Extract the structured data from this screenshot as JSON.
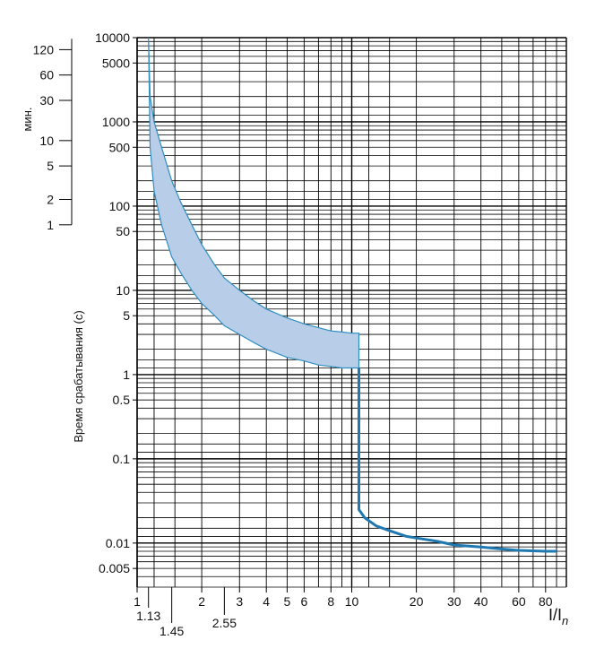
{
  "chart_data": {
    "type": "line",
    "x_scale": "log",
    "y_scale": "log",
    "xlim": [
      1,
      100
    ],
    "ylim": [
      0.003,
      10000
    ],
    "grid": true,
    "xlabel_main": "I/I",
    "xlabel_sub": "n",
    "ylabel": "Время срабатывания (с)",
    "minutes_label": "мин.",
    "x_ticks": [
      {
        "value": 1,
        "label": "1"
      },
      {
        "value": 2,
        "label": "2"
      },
      {
        "value": 3,
        "label": "3"
      },
      {
        "value": 4,
        "label": "4"
      },
      {
        "value": 5,
        "label": "5"
      },
      {
        "value": 6,
        "label": "6"
      },
      {
        "value": 8,
        "label": "8"
      },
      {
        "value": 10,
        "label": "10"
      },
      {
        "value": 20,
        "label": "20"
      },
      {
        "value": 30,
        "label": "30"
      },
      {
        "value": 40,
        "label": "40"
      },
      {
        "value": 60,
        "label": "60"
      },
      {
        "value": 80,
        "label": "80"
      }
    ],
    "x_special_ticks": [
      {
        "value": 1.13,
        "label": "1.13"
      },
      {
        "value": 1.45,
        "label": "1.45"
      },
      {
        "value": 2.55,
        "label": "2.55"
      }
    ],
    "y_ticks": [
      {
        "value": 10000,
        "label": "10000"
      },
      {
        "value": 5000,
        "label": "5000"
      },
      {
        "value": 1000,
        "label": "1000"
      },
      {
        "value": 500,
        "label": "500"
      },
      {
        "value": 100,
        "label": "100"
      },
      {
        "value": 50,
        "label": "50"
      },
      {
        "value": 10,
        "label": "10"
      },
      {
        "value": 5,
        "label": "5"
      },
      {
        "value": 1,
        "label": "1"
      },
      {
        "value": 0.5,
        "label": "0.5"
      },
      {
        "value": 0.1,
        "label": "0.1"
      },
      {
        "value": 0.01,
        "label": "0.01"
      },
      {
        "value": 0.005,
        "label": "0.005"
      }
    ],
    "minute_ticks": [
      {
        "value": 120,
        "label": "120"
      },
      {
        "value": 60,
        "label": "60"
      },
      {
        "value": 30,
        "label": "30"
      },
      {
        "value": 10,
        "label": "10"
      },
      {
        "value": 5,
        "label": "5"
      },
      {
        "value": 2,
        "label": "2"
      },
      {
        "value": 1,
        "label": "1"
      }
    ],
    "band": {
      "upper": [
        [
          1.13,
          10000
        ],
        [
          1.15,
          2000
        ],
        [
          1.2,
          1000
        ],
        [
          1.3,
          500
        ],
        [
          1.45,
          200
        ],
        [
          1.6,
          110
        ],
        [
          1.8,
          60
        ],
        [
          2,
          35
        ],
        [
          2.3,
          20
        ],
        [
          2.55,
          14
        ],
        [
          3,
          10
        ],
        [
          3.5,
          7.5
        ],
        [
          4,
          6
        ],
        [
          5,
          4.7
        ],
        [
          6,
          4
        ],
        [
          7,
          3.6
        ],
        [
          8,
          3.3
        ],
        [
          9,
          3.2
        ],
        [
          10,
          3.1
        ],
        [
          10.8,
          3.1
        ]
      ],
      "lower": [
        [
          10.8,
          1.2
        ],
        [
          10,
          1.2
        ],
        [
          9,
          1.2
        ],
        [
          8,
          1.25
        ],
        [
          7,
          1.3
        ],
        [
          6,
          1.45
        ],
        [
          5,
          1.6
        ],
        [
          4,
          2
        ],
        [
          3.5,
          2.4
        ],
        [
          3,
          3
        ],
        [
          2.55,
          3.8
        ],
        [
          2.3,
          5
        ],
        [
          2,
          7
        ],
        [
          1.8,
          10
        ],
        [
          1.6,
          16
        ],
        [
          1.45,
          25
        ],
        [
          1.3,
          60
        ],
        [
          1.2,
          150
        ],
        [
          1.15,
          500
        ],
        [
          1.13,
          10000
        ]
      ]
    },
    "series": [
      {
        "points": [
          [
            10.8,
            1.2
          ],
          [
            10.8,
            0.025
          ],
          [
            11.5,
            0.02
          ],
          [
            13,
            0.016
          ],
          [
            15,
            0.014
          ],
          [
            18,
            0.012
          ],
          [
            20,
            0.0115
          ],
          [
            25,
            0.0105
          ],
          [
            30,
            0.0095
          ],
          [
            40,
            0.009
          ],
          [
            50,
            0.0085
          ],
          [
            60,
            0.0082
          ],
          [
            80,
            0.008
          ],
          [
            90,
            0.008
          ]
        ]
      }
    ],
    "colors": {
      "band_fill": "#b7cde8",
      "band_stroke": "#2f8fc0",
      "curve": "#1f79b0",
      "grid": "#000000"
    }
  }
}
